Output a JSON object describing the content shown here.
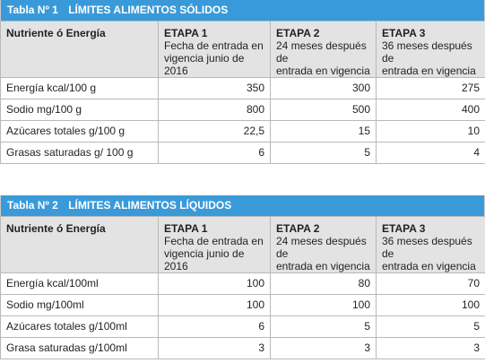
{
  "tables": [
    {
      "num": "Tabla Nº 1",
      "title": "LÍMITES ALIMENTOS SÓLIDOS",
      "header": {
        "col0": "Nutriente ó Energía",
        "stages": [
          {
            "name": "ETAPA 1",
            "desc1": "Fecha de entrada en",
            "desc2": "vigencia junio de 2016"
          },
          {
            "name": "ETAPA 2",
            "desc1": "24 meses después de",
            "desc2": "entrada en vigencia"
          },
          {
            "name": "ETAPA 3",
            "desc1": "36 meses después de",
            "desc2": "entrada en vigencia"
          }
        ]
      },
      "rows": [
        {
          "label": "Energía kcal/100 g",
          "v1": "350",
          "v2": "300",
          "v3": "275"
        },
        {
          "label": "Sodio mg/100 g",
          "v1": "800",
          "v2": "500",
          "v3": "400"
        },
        {
          "label": "Azúcares totales g/100 g",
          "v1": "22,5",
          "v2": "15",
          "v3": "10"
        },
        {
          "label": "Grasas saturadas g/ 100 g",
          "v1": "6",
          "v2": "5",
          "v3": "4"
        }
      ]
    },
    {
      "num": "Tabla Nº 2",
      "title": "LÍMITES ALIMENTOS LÍQUIDOS",
      "header": {
        "col0": "Nutriente ó Energía",
        "stages": [
          {
            "name": "ETAPA 1",
            "desc1": "Fecha de entrada en",
            "desc2": "vigencia junio de 2016"
          },
          {
            "name": "ETAPA 2",
            "desc1": "24 meses después de",
            "desc2": "entrada en vigencia"
          },
          {
            "name": "ETAPA 3",
            "desc1": "36 meses después de",
            "desc2": "entrada en vigencia"
          }
        ]
      },
      "rows": [
        {
          "label": "Energía kcal/100ml",
          "v1": "100",
          "v2": "80",
          "v3": "70"
        },
        {
          "label": "Sodio mg/100ml",
          "v1": "100",
          "v2": "100",
          "v3": "100"
        },
        {
          "label": "Azúcares totales g/100ml",
          "v1": "6",
          "v2": "5",
          "v3": "5"
        },
        {
          "label": "Grasa saturadas g/100ml",
          "v1": "3",
          "v2": "3",
          "v3": "3"
        }
      ]
    }
  ]
}
